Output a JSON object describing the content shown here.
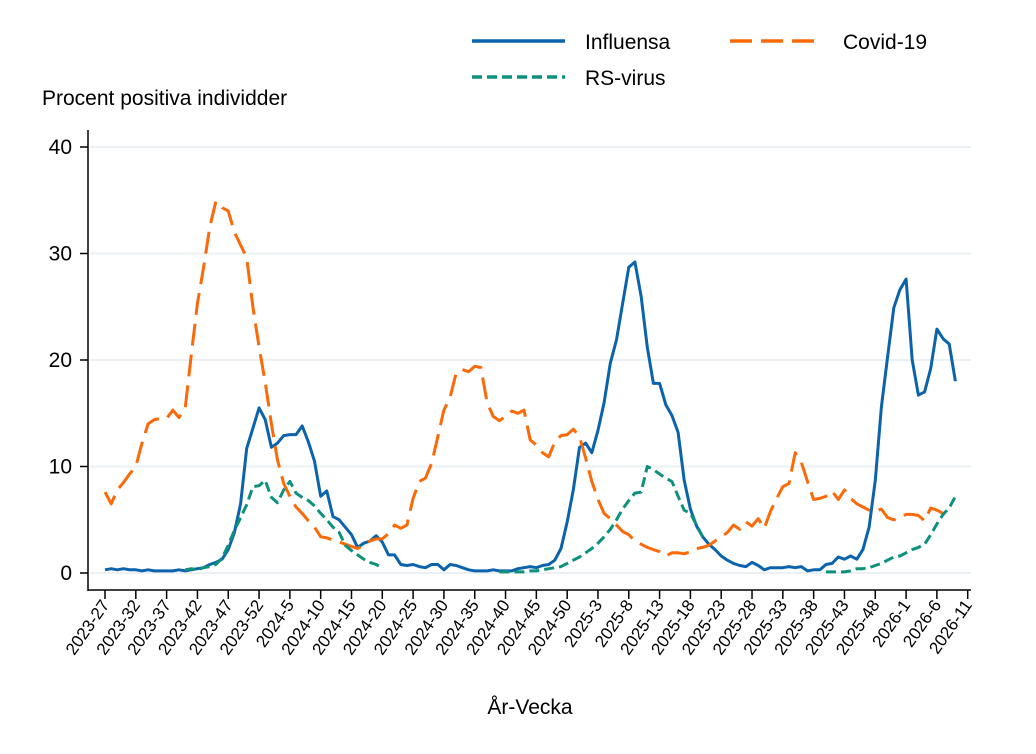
{
  "chart_data": {
    "type": "line",
    "title": "",
    "ylabel": "Procent positiva individder",
    "xlabel": "År-Vecka",
    "ylim": [
      0,
      40
    ],
    "yticks": [
      0,
      10,
      20,
      30,
      40
    ],
    "grid": "horizontal",
    "legend_placement": "top-right",
    "xtick_labels": [
      "2023-27",
      "2023-32",
      "2023-37",
      "2023-42",
      "2023-47",
      "2023-52",
      "2024-5",
      "2024-10",
      "2024-15",
      "2024-20",
      "2024-25",
      "2024-30",
      "2024-35",
      "2024-40",
      "2024-45",
      "2024-50",
      "2025-3",
      "2025-8",
      "2025-13",
      "2025-18",
      "2025-23",
      "2025-28",
      "2025-33",
      "2025-38",
      "2025-43",
      "2025-48",
      "2026-1",
      "2026-6",
      "2026-11"
    ],
    "weeks": [
      "2023-27",
      "2023-28",
      "2023-29",
      "2023-30",
      "2023-31",
      "2023-32",
      "2023-33",
      "2023-34",
      "2023-35",
      "2023-36",
      "2023-37",
      "2023-38",
      "2023-39",
      "2023-40",
      "2023-41",
      "2023-42",
      "2023-43",
      "2023-44",
      "2023-45",
      "2023-46",
      "2023-47",
      "2023-48",
      "2023-49",
      "2023-50",
      "2023-51",
      "2023-52",
      "2024-1",
      "2024-2",
      "2024-3",
      "2024-4",
      "2024-5",
      "2024-6",
      "2024-7",
      "2024-8",
      "2024-9",
      "2024-10",
      "2024-11",
      "2024-12",
      "2024-13",
      "2024-14",
      "2024-15",
      "2024-16",
      "2024-17",
      "2024-18",
      "2024-19",
      "2024-20",
      "2024-21",
      "2024-22",
      "2024-23",
      "2024-24",
      "2024-25",
      "2024-26",
      "2024-27",
      "2024-28",
      "2024-29",
      "2024-30",
      "2024-31",
      "2024-32",
      "2024-33",
      "2024-34",
      "2024-35",
      "2024-36",
      "2024-37",
      "2024-38",
      "2024-39",
      "2024-40",
      "2024-41",
      "2024-42",
      "2024-43",
      "2024-44",
      "2024-45",
      "2024-46",
      "2024-47",
      "2024-48",
      "2024-49",
      "2024-50",
      "2024-51",
      "2024-52",
      "2025-1",
      "2025-2",
      "2025-3",
      "2025-4",
      "2025-5",
      "2025-6",
      "2025-7",
      "2025-8",
      "2025-9",
      "2025-10",
      "2025-11",
      "2025-12",
      "2025-13",
      "2025-14",
      "2025-15",
      "2025-16",
      "2025-17",
      "2025-18",
      "2025-19",
      "2025-20",
      "2025-21",
      "2025-22",
      "2025-23",
      "2025-24",
      "2025-25",
      "2025-26",
      "2025-27",
      "2025-28",
      "2025-29",
      "2025-30",
      "2025-31",
      "2025-32",
      "2025-33",
      "2025-34",
      "2025-35",
      "2025-36",
      "2025-37",
      "2025-38",
      "2025-39",
      "2025-40",
      "2025-41",
      "2025-42",
      "2025-43",
      "2025-44",
      "2025-45",
      "2025-46",
      "2025-47",
      "2025-48",
      "2025-49",
      "2025-50",
      "2025-51",
      "2025-52",
      "2026-1",
      "2026-2",
      "2026-3",
      "2026-4",
      "2026-5",
      "2026-6",
      "2026-7",
      "2026-8",
      "2026-9",
      "2026-10",
      "2026-11"
    ],
    "series": [
      {
        "name": "Influensa",
        "color": "#0b63ac",
        "style": "solid",
        "values": [
          0.3,
          0.4,
          0.3,
          0.4,
          0.3,
          0.3,
          0.2,
          0.3,
          0.2,
          0.2,
          0.2,
          0.2,
          0.3,
          0.2,
          0.3,
          0.4,
          0.5,
          0.8,
          1.0,
          1.3,
          2.2,
          3.8,
          6.5,
          11.7,
          13.6,
          15.5,
          14.4,
          11.8,
          12.2,
          12.9,
          13.0,
          13.0,
          13.8,
          12.3,
          10.5,
          7.2,
          7.7,
          5.3,
          5.0,
          4.3,
          3.6,
          2.4,
          2.8,
          3.0,
          3.5,
          2.9,
          1.7,
          1.7,
          0.8,
          0.7,
          0.8,
          0.6,
          0.5,
          0.8,
          0.8,
          0.3,
          0.8,
          0.7,
          0.5,
          0.3,
          0.2,
          0.2,
          0.2,
          0.3,
          0.2,
          0.2,
          0.2,
          0.4,
          0.5,
          0.6,
          0.5,
          0.7,
          0.8,
          1.2,
          2.3,
          4.8,
          7.8,
          11.8,
          12.2,
          11.3,
          13.4,
          16.0,
          19.7,
          21.9,
          25.3,
          28.7,
          29.2,
          26.0,
          21.2,
          17.8,
          17.8,
          15.8,
          14.8,
          13.2,
          8.7,
          6.0,
          4.4,
          3.4,
          2.7,
          2.2,
          1.6,
          1.2,
          0.9,
          0.7,
          0.6,
          1.0,
          0.7,
          0.3,
          0.5,
          0.5,
          0.5,
          0.6,
          0.5,
          0.6,
          0.2,
          0.3,
          0.3,
          0.8,
          0.9,
          1.5,
          1.3,
          1.6,
          1.3,
          2.2,
          4.3,
          8.7,
          15.6,
          20.3,
          24.9,
          26.6,
          27.6,
          20.0,
          16.7,
          17.0,
          19.2,
          22.9,
          22.0,
          21.5,
          18.0,
          null,
          null
        ]
      },
      {
        "name": "Covid-19",
        "color": "#fb6a08",
        "style": "longdash",
        "values": [
          7.6,
          6.5,
          7.8,
          8.5,
          9.3,
          10.0,
          12.2,
          14.0,
          14.4,
          14.5,
          14.5,
          15.3,
          14.6,
          15.4,
          20.5,
          25.3,
          28.7,
          32.5,
          34.9,
          34.3,
          34.0,
          32.0,
          30.8,
          29.6,
          25.0,
          21.2,
          17.9,
          14.0,
          10.6,
          8.4,
          7.2,
          6.2,
          5.6,
          4.9,
          4.3,
          3.4,
          3.3,
          3.1,
          2.9,
          2.7,
          2.5,
          2.3,
          2.6,
          3.0,
          3.2,
          3.2,
          3.7,
          4.5,
          4.2,
          4.5,
          7.0,
          8.6,
          8.9,
          10.3,
          12.8,
          15.3,
          16.5,
          18.8,
          19.1,
          18.9,
          19.4,
          19.3,
          16.0,
          14.7,
          14.3,
          14.7,
          15.2,
          15.0,
          15.3,
          12.5,
          12.0,
          11.3,
          10.9,
          12.3,
          12.9,
          13.0,
          13.5,
          12.8,
          10.8,
          8.6,
          6.9,
          5.6,
          5.1,
          4.5,
          3.9,
          3.6,
          3.0,
          2.7,
          2.4,
          2.2,
          2.0,
          1.6,
          1.9,
          1.9,
          1.8,
          2.0,
          2.3,
          2.4,
          2.6,
          3.0,
          3.4,
          3.8,
          4.5,
          4.1,
          4.8,
          4.4,
          5.1,
          4.2,
          5.8,
          7.0,
          8.1,
          8.4,
          11.3,
          10.4,
          8.6,
          6.9,
          7.0,
          7.2,
          7.7,
          6.9,
          7.8,
          7.0,
          6.5,
          6.2,
          5.9,
          5.8,
          6.0,
          5.2,
          5.0,
          5.2,
          5.5,
          5.5,
          5.4,
          4.9,
          6.1,
          5.9,
          5.6,
          5.3,
          null,
          null,
          null
        ]
      },
      {
        "name": "RS-virus",
        "color": "#0d917d",
        "style": "dash",
        "values": [
          null,
          null,
          null,
          null,
          null,
          null,
          null,
          null,
          null,
          null,
          null,
          null,
          null,
          0.3,
          0.4,
          0.3,
          0.5,
          0.6,
          0.8,
          1.4,
          2.6,
          4.0,
          5.2,
          6.4,
          8.1,
          8.2,
          8.7,
          7.1,
          6.6,
          7.8,
          8.6,
          7.5,
          7.1,
          6.8,
          6.3,
          5.6,
          5.0,
          4.3,
          3.8,
          2.6,
          2.1,
          1.7,
          1.3,
          1.0,
          0.8,
          0.5,
          null,
          null,
          null,
          null,
          null,
          null,
          null,
          null,
          null,
          null,
          null,
          null,
          null,
          null,
          null,
          null,
          null,
          null,
          0.1,
          0.1,
          0.1,
          0.1,
          0.1,
          0.2,
          0.2,
          0.3,
          0.4,
          0.5,
          0.6,
          0.9,
          1.2,
          1.5,
          1.9,
          2.3,
          2.8,
          3.4,
          4.1,
          5.0,
          6.0,
          6.8,
          7.5,
          7.6,
          10.0,
          9.7,
          9.3,
          8.9,
          8.6,
          7.2,
          5.9,
          5.6,
          4.5,
          3.4,
          null,
          null,
          null,
          null,
          null,
          null,
          null,
          null,
          null,
          null,
          null,
          null,
          null,
          null,
          null,
          null,
          null,
          null,
          null,
          0.1,
          0.1,
          0.1,
          0.1,
          0.2,
          0.4,
          0.4,
          0.5,
          0.7,
          0.9,
          1.2,
          1.5,
          1.6,
          1.9,
          2.2,
          2.4,
          2.7,
          3.6,
          4.6,
          5.5,
          6.1,
          7.2,
          null,
          null
        ]
      }
    ]
  }
}
